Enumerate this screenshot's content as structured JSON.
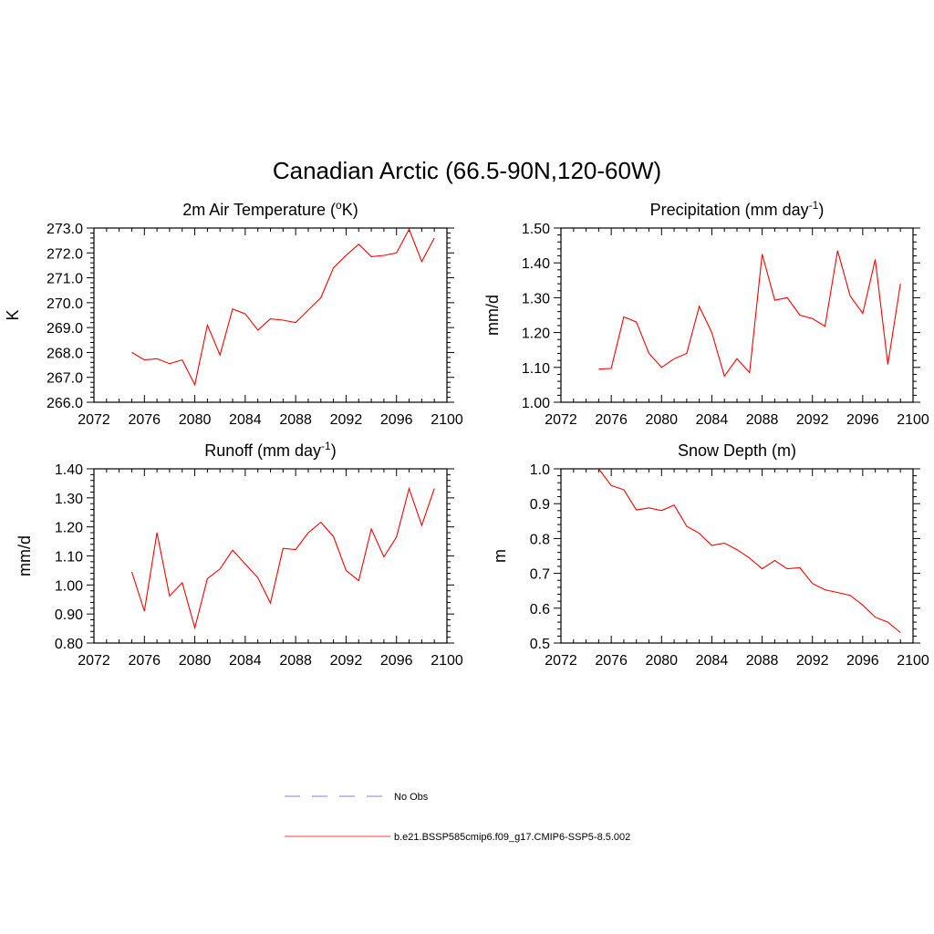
{
  "figure": {
    "title": "Canadian Arctic (66.5-90N,120-60W)"
  },
  "legend": {
    "entries": [
      {
        "label": "No Obs",
        "color": "#9999ee",
        "style": "dashed"
      },
      {
        "label": "b.e21.BSSP585cmip6.f09_g17.CMIP6-SSP5-8.5.002",
        "color": "#ff6666",
        "style": "solid"
      }
    ]
  },
  "chart_data": [
    {
      "type": "line",
      "title_main": "2m Air Temperature (",
      "title_sup": "o",
      "title_end": "K)",
      "ylabel": "K",
      "xlim": [
        2072,
        2100
      ],
      "xticks": [
        2072,
        2076,
        2080,
        2084,
        2088,
        2092,
        2096,
        2100
      ],
      "ylim": [
        266.0,
        273.0
      ],
      "yticks": [
        "266.0",
        "267.0",
        "268.0",
        "269.0",
        "270.0",
        "271.0",
        "272.0",
        "273.0"
      ],
      "color": "#ff0000",
      "x": [
        2075,
        2076,
        2077,
        2078,
        2079,
        2080,
        2081,
        2082,
        2083,
        2084,
        2085,
        2086,
        2087,
        2088,
        2089,
        2090,
        2091,
        2092,
        2093,
        2094,
        2095,
        2096,
        2097,
        2098,
        2099
      ],
      "values": [
        268.0,
        267.7,
        267.75,
        267.55,
        267.7,
        266.7,
        269.1,
        267.9,
        269.75,
        269.55,
        268.9,
        269.35,
        269.3,
        269.2,
        269.7,
        270.2,
        271.4,
        271.9,
        272.35,
        271.85,
        271.9,
        272.0,
        272.95,
        271.65,
        272.6
      ]
    },
    {
      "type": "line",
      "title_main": "Precipitation (mm day",
      "title_sup": "-1",
      "title_end": ")",
      "ylabel": "mm/d",
      "xlim": [
        2072,
        2100
      ],
      "xticks": [
        2072,
        2076,
        2080,
        2084,
        2088,
        2092,
        2096,
        2100
      ],
      "ylim": [
        1.0,
        1.5
      ],
      "yticks": [
        "1.00",
        "1.10",
        "1.20",
        "1.30",
        "1.40",
        "1.50"
      ],
      "color": "#ff0000",
      "x": [
        2075,
        2076,
        2077,
        2078,
        2079,
        2080,
        2081,
        2082,
        2083,
        2084,
        2085,
        2086,
        2087,
        2088,
        2089,
        2090,
        2091,
        2092,
        2093,
        2094,
        2095,
        2096,
        2097,
        2098,
        2099
      ],
      "values": [
        1.095,
        1.097,
        1.245,
        1.23,
        1.14,
        1.1,
        1.125,
        1.14,
        1.275,
        1.2,
        1.075,
        1.125,
        1.085,
        1.425,
        1.293,
        1.3,
        1.25,
        1.24,
        1.218,
        1.435,
        1.305,
        1.255,
        1.41,
        1.108,
        1.34
      ]
    },
    {
      "type": "line",
      "title_main": "Runoff (mm day",
      "title_sup": "-1",
      "title_end": ")",
      "ylabel": "mm/d",
      "xlim": [
        2072,
        2100
      ],
      "xticks": [
        2072,
        2076,
        2080,
        2084,
        2088,
        2092,
        2096,
        2100
      ],
      "ylim": [
        0.8,
        1.4
      ],
      "yticks": [
        "0.80",
        "0.90",
        "1.00",
        "1.10",
        "1.20",
        "1.30",
        "1.40"
      ],
      "color": "#ff0000",
      "x": [
        2075,
        2076,
        2077,
        2078,
        2079,
        2080,
        2081,
        2082,
        2083,
        2084,
        2085,
        2086,
        2087,
        2088,
        2089,
        2090,
        2091,
        2092,
        2093,
        2094,
        2095,
        2096,
        2097,
        2098,
        2099
      ],
      "values": [
        1.045,
        0.91,
        1.18,
        0.962,
        1.008,
        0.852,
        1.022,
        1.055,
        1.12,
        1.072,
        1.025,
        0.938,
        1.126,
        1.122,
        1.18,
        1.216,
        1.167,
        1.05,
        1.015,
        1.193,
        1.097,
        1.165,
        1.332,
        1.205,
        1.332
      ]
    },
    {
      "type": "line",
      "title_main": "Snow Depth (m)",
      "title_sup": "",
      "title_end": "",
      "ylabel": "m",
      "xlim": [
        2072,
        2100
      ],
      "xticks": [
        2072,
        2076,
        2080,
        2084,
        2088,
        2092,
        2096,
        2100
      ],
      "ylim": [
        0.5,
        1.0
      ],
      "yticks": [
        "0.5",
        "0.6",
        "0.7",
        "0.8",
        "0.9",
        "1.0"
      ],
      "color": "#ff0000",
      "x": [
        2075,
        2076,
        2077,
        2078,
        2079,
        2080,
        2081,
        2082,
        2083,
        2084,
        2085,
        2086,
        2087,
        2088,
        2089,
        2090,
        2091,
        2092,
        2093,
        2094,
        2095,
        2096,
        2097,
        2098,
        2099
      ],
      "values": [
        1.0,
        0.952,
        0.94,
        0.882,
        0.888,
        0.88,
        0.896,
        0.835,
        0.815,
        0.78,
        0.787,
        0.768,
        0.744,
        0.713,
        0.737,
        0.713,
        0.716,
        0.671,
        0.653,
        0.645,
        0.637,
        0.609,
        0.574,
        0.56,
        0.53
      ]
    }
  ]
}
